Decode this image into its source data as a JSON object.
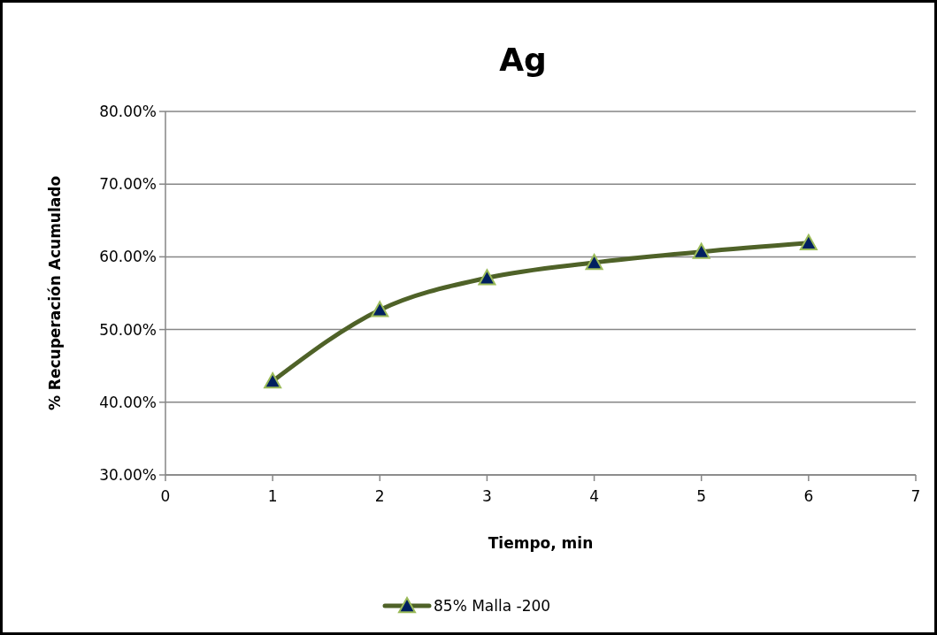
{
  "chart_data": {
    "type": "line",
    "title": "Ag",
    "xlabel": "Tiempo, min",
    "ylabel": "% Recuperación Acumulado",
    "x": [
      1,
      2,
      3,
      4,
      5,
      6
    ],
    "series": [
      {
        "name": "85% Malla -200",
        "color": "#4f6228",
        "values": [
          42.9,
          52.7,
          57.1,
          59.2,
          60.7,
          61.9
        ]
      }
    ],
    "xlim": [
      0,
      7
    ],
    "xticks": [
      0,
      1,
      2,
      3,
      4,
      5,
      6,
      7
    ],
    "ylim": [
      30,
      80
    ],
    "yticks": [
      {
        "value": 30,
        "label": "30.00%"
      },
      {
        "value": 40,
        "label": "40.00%"
      },
      {
        "value": 50,
        "label": "50.00%"
      },
      {
        "value": 60,
        "label": "60.00%"
      },
      {
        "value": 70,
        "label": "70.00%"
      },
      {
        "value": 80,
        "label": "80.00%"
      }
    ],
    "grid": "y",
    "legend": "bottom",
    "marker": "triangle",
    "line_style": "solid"
  }
}
